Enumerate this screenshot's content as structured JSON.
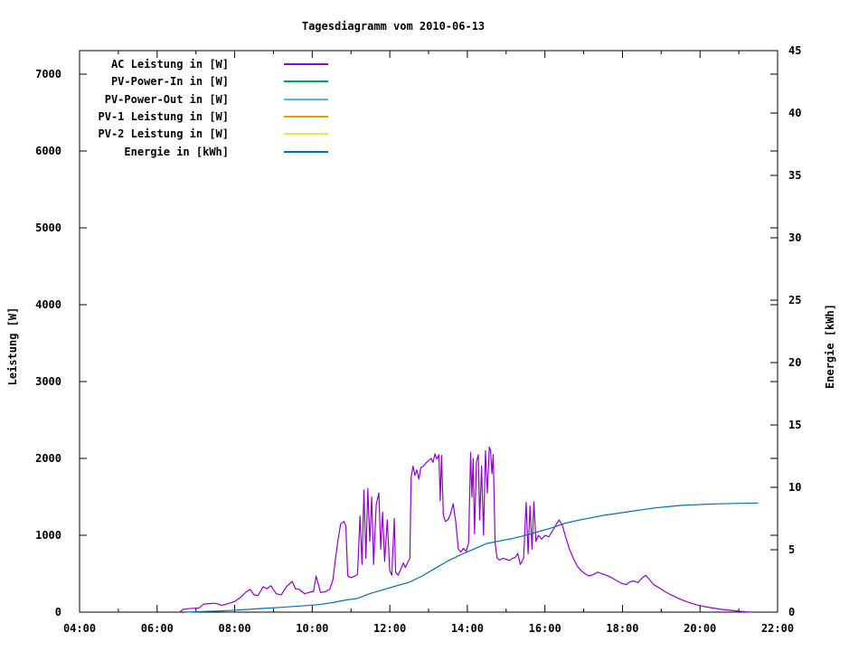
{
  "chart_data": {
    "type": "line",
    "title": "Tagesdiagramm vom 2010-06-13",
    "grid": false,
    "legend_position": "top-left-inside",
    "x": {
      "min": "04:00",
      "max": "22:00",
      "major_tick_hours": 2,
      "minor_tick_hours": 1,
      "tick_labels": [
        "04:00",
        "06:00",
        "08:00",
        "10:00",
        "12:00",
        "14:00",
        "16:00",
        "18:00",
        "20:00",
        "22:00"
      ]
    },
    "y_left": {
      "label": "Leistung [W]",
      "min": 0,
      "max": 7000,
      "ticks": [
        0,
        1000,
        2000,
        3000,
        4000,
        5000,
        6000,
        7000
      ]
    },
    "y_right": {
      "label": "Energie [kWh]",
      "min": 0,
      "max": 45,
      "ticks": [
        0,
        5,
        10,
        15,
        20,
        25,
        30,
        35,
        40,
        45
      ]
    },
    "series": [
      {
        "name": "AC Leistung in [W]",
        "color": "#9400d3",
        "axis": "left",
        "points": [
          [
            "06:35",
            0
          ],
          [
            "06:40",
            35
          ],
          [
            "06:48",
            45
          ],
          [
            "06:55",
            50
          ],
          [
            "07:05",
            55
          ],
          [
            "07:12",
            105
          ],
          [
            "07:20",
            110
          ],
          [
            "07:30",
            115
          ],
          [
            "07:40",
            90
          ],
          [
            "07:50",
            110
          ],
          [
            "08:00",
            140
          ],
          [
            "08:08",
            185
          ],
          [
            "08:18",
            265
          ],
          [
            "08:24",
            295
          ],
          [
            "08:30",
            225
          ],
          [
            "08:36",
            215
          ],
          [
            "08:44",
            330
          ],
          [
            "08:50",
            305
          ],
          [
            "08:56",
            345
          ],
          [
            "09:04",
            240
          ],
          [
            "09:12",
            225
          ],
          [
            "09:20",
            330
          ],
          [
            "09:29",
            400
          ],
          [
            "09:34",
            305
          ],
          [
            "09:40",
            295
          ],
          [
            "09:48",
            240
          ],
          [
            "09:55",
            255
          ],
          [
            "10:02",
            270
          ],
          [
            "10:06",
            470
          ],
          [
            "10:09",
            375
          ],
          [
            "10:13",
            255
          ],
          [
            "10:20",
            265
          ],
          [
            "10:27",
            295
          ],
          [
            "10:32",
            420
          ],
          [
            "10:36",
            700
          ],
          [
            "10:40",
            945
          ],
          [
            "10:44",
            1150
          ],
          [
            "10:49",
            1180
          ],
          [
            "10:52",
            1120
          ],
          [
            "10:55",
            470
          ],
          [
            "11:00",
            450
          ],
          [
            "11:05",
            465
          ],
          [
            "11:10",
            490
          ],
          [
            "11:14",
            1250
          ],
          [
            "11:17",
            620
          ],
          [
            "11:20",
            1590
          ],
          [
            "11:23",
            700
          ],
          [
            "11:26",
            1610
          ],
          [
            "11:29",
            920
          ],
          [
            "11:32",
            1500
          ],
          [
            "11:35",
            620
          ],
          [
            "11:39",
            1400
          ],
          [
            "11:43",
            1550
          ],
          [
            "11:46",
            820
          ],
          [
            "11:49",
            1300
          ],
          [
            "11:52",
            660
          ],
          [
            "11:56",
            1200
          ],
          [
            "12:00",
            540
          ],
          [
            "12:03",
            480
          ],
          [
            "12:07",
            1220
          ],
          [
            "12:09",
            520
          ],
          [
            "12:13",
            480
          ],
          [
            "12:17",
            560
          ],
          [
            "12:21",
            640
          ],
          [
            "12:24",
            580
          ],
          [
            "12:28",
            650
          ],
          [
            "12:31",
            700
          ],
          [
            "12:33",
            1750
          ],
          [
            "12:36",
            1900
          ],
          [
            "12:39",
            1780
          ],
          [
            "12:42",
            1850
          ],
          [
            "12:45",
            1730
          ],
          [
            "12:48",
            1880
          ],
          [
            "12:52",
            1900
          ],
          [
            "12:56",
            1940
          ],
          [
            "13:00",
            1970
          ],
          [
            "13:04",
            2000
          ],
          [
            "13:07",
            1950
          ],
          [
            "13:10",
            2060
          ],
          [
            "13:13",
            1990
          ],
          [
            "13:16",
            2050
          ],
          [
            "13:18",
            1450
          ],
          [
            "13:20",
            2040
          ],
          [
            "13:23",
            1260
          ],
          [
            "13:26",
            1180
          ],
          [
            "13:30",
            1200
          ],
          [
            "13:34",
            1280
          ],
          [
            "13:38",
            1410
          ],
          [
            "13:42",
            1180
          ],
          [
            "13:46",
            820
          ],
          [
            "13:50",
            780
          ],
          [
            "13:54",
            830
          ],
          [
            "13:58",
            790
          ],
          [
            "14:02",
            900
          ],
          [
            "14:05",
            2080
          ],
          [
            "14:07",
            1500
          ],
          [
            "14:09",
            2000
          ],
          [
            "14:11",
            1020
          ],
          [
            "14:14",
            1950
          ],
          [
            "14:17",
            2050
          ],
          [
            "14:19",
            1200
          ],
          [
            "14:22",
            1900
          ],
          [
            "14:25",
            1000
          ],
          [
            "14:28",
            2100
          ],
          [
            "14:31",
            1550
          ],
          [
            "14:34",
            2150
          ],
          [
            "14:36",
            2100
          ],
          [
            "14:38",
            1800
          ],
          [
            "14:40",
            2050
          ],
          [
            "14:43",
            900
          ],
          [
            "14:46",
            700
          ],
          [
            "14:50",
            680
          ],
          [
            "14:55",
            700
          ],
          [
            "15:00",
            690
          ],
          [
            "15:05",
            670
          ],
          [
            "15:10",
            700
          ],
          [
            "15:14",
            710
          ],
          [
            "15:18",
            765
          ],
          [
            "15:22",
            620
          ],
          [
            "15:27",
            700
          ],
          [
            "15:31",
            1430
          ],
          [
            "15:34",
            760
          ],
          [
            "15:37",
            1380
          ],
          [
            "15:40",
            820
          ],
          [
            "15:43",
            1435
          ],
          [
            "15:46",
            920
          ],
          [
            "15:50",
            1000
          ],
          [
            "15:55",
            950
          ],
          [
            "16:00",
            1000
          ],
          [
            "16:06",
            980
          ],
          [
            "16:12",
            1060
          ],
          [
            "16:18",
            1150
          ],
          [
            "16:22",
            1200
          ],
          [
            "16:27",
            1130
          ],
          [
            "16:32",
            980
          ],
          [
            "16:38",
            820
          ],
          [
            "16:44",
            700
          ],
          [
            "16:50",
            600
          ],
          [
            "16:56",
            540
          ],
          [
            "17:02",
            500
          ],
          [
            "17:08",
            470
          ],
          [
            "17:15",
            490
          ],
          [
            "17:22",
            520
          ],
          [
            "17:28",
            500
          ],
          [
            "17:35",
            480
          ],
          [
            "17:43",
            450
          ],
          [
            "17:51",
            410
          ],
          [
            "18:00",
            370
          ],
          [
            "18:06",
            360
          ],
          [
            "18:12",
            395
          ],
          [
            "18:18",
            405
          ],
          [
            "18:24",
            385
          ],
          [
            "18:30",
            440
          ],
          [
            "18:36",
            480
          ],
          [
            "18:42",
            420
          ],
          [
            "18:48",
            360
          ],
          [
            "18:56",
            320
          ],
          [
            "19:05",
            270
          ],
          [
            "19:15",
            225
          ],
          [
            "19:25",
            185
          ],
          [
            "19:35",
            150
          ],
          [
            "19:45",
            120
          ],
          [
            "19:55",
            95
          ],
          [
            "20:05",
            75
          ],
          [
            "20:15",
            60
          ],
          [
            "20:30",
            40
          ],
          [
            "20:45",
            25
          ],
          [
            "21:00",
            12
          ],
          [
            "21:10",
            5
          ],
          [
            "21:22",
            0
          ]
        ]
      },
      {
        "name": "PV-Power-In in [W]",
        "color": "#009e73",
        "axis": "left",
        "points": []
      },
      {
        "name": "PV-Power-Out in [W]",
        "color": "#56b4e9",
        "axis": "left",
        "points": []
      },
      {
        "name": "PV-1 Leistung in [W]",
        "color": "#e69f00",
        "axis": "left",
        "points": []
      },
      {
        "name": "PV-2 Leistung in [W]",
        "color": "#f0e442",
        "axis": "left",
        "points": []
      },
      {
        "name": "Energie in [kWh]",
        "color": "#0072b2",
        "axis": "right",
        "points": [
          [
            "06:45",
            0
          ],
          [
            "07:10",
            0.05
          ],
          [
            "07:30",
            0.08
          ],
          [
            "07:50",
            0.12
          ],
          [
            "08:10",
            0.18
          ],
          [
            "08:30",
            0.25
          ],
          [
            "08:50",
            0.32
          ],
          [
            "09:10",
            0.38
          ],
          [
            "09:30",
            0.45
          ],
          [
            "09:50",
            0.52
          ],
          [
            "10:10",
            0.6
          ],
          [
            "10:30",
            0.75
          ],
          [
            "10:50",
            0.95
          ],
          [
            "11:10",
            1.1
          ],
          [
            "11:30",
            1.5
          ],
          [
            "11:50",
            1.8
          ],
          [
            "12:10",
            2.1
          ],
          [
            "12:30",
            2.4
          ],
          [
            "12:50",
            2.9
          ],
          [
            "13:10",
            3.5
          ],
          [
            "13:30",
            4.1
          ],
          [
            "13:50",
            4.6
          ],
          [
            "14:10",
            5.05
          ],
          [
            "14:30",
            5.5
          ],
          [
            "14:50",
            5.7
          ],
          [
            "15:10",
            5.9
          ],
          [
            "15:30",
            6.15
          ],
          [
            "15:50",
            6.45
          ],
          [
            "16:10",
            6.75
          ],
          [
            "16:30",
            7.1
          ],
          [
            "16:50",
            7.35
          ],
          [
            "17:10",
            7.55
          ],
          [
            "17:30",
            7.75
          ],
          [
            "17:50",
            7.9
          ],
          [
            "18:10",
            8.05
          ],
          [
            "18:30",
            8.2
          ],
          [
            "18:50",
            8.35
          ],
          [
            "19:10",
            8.45
          ],
          [
            "19:30",
            8.55
          ],
          [
            "19:50",
            8.6
          ],
          [
            "20:10",
            8.65
          ],
          [
            "20:30",
            8.68
          ],
          [
            "21:00",
            8.72
          ],
          [
            "21:30",
            8.75
          ]
        ]
      }
    ]
  }
}
